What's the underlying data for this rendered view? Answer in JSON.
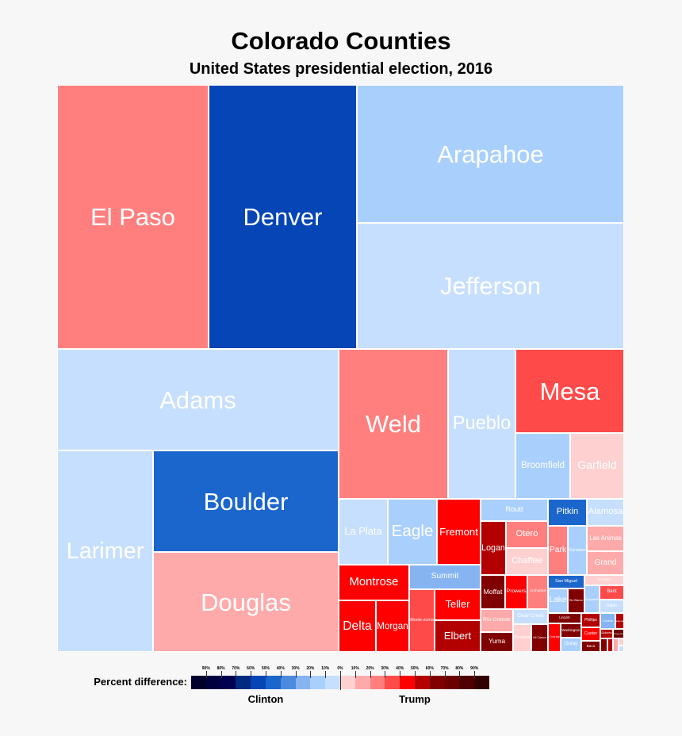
{
  "chart_data": {
    "type": "treemap",
    "title": "Colorado Counties",
    "subtitle": "United States presidential election, 2016",
    "legend": {
      "label": "Percent difference:",
      "clinton_label": "Clinton",
      "trump_label": "Trump",
      "tick_labels": [
        "90%",
        "80%",
        "70%",
        "60%",
        "50%",
        "40%",
        "30%",
        "20%",
        "10%",
        "0%",
        "10%",
        "20%",
        "30%",
        "40%",
        "50%",
        "60%",
        "70%",
        "80%",
        "90%"
      ],
      "clinton_colors": [
        "#00002c",
        "#000040",
        "#000050",
        "#002a7f",
        "#0645b5",
        "#1b66cc",
        "#4a8be0",
        "#85b4f1",
        "#a9d0fd",
        "#c7dffe"
      ],
      "trump_colors": [
        "#ffd0d0",
        "#ffaaaa",
        "#ff7f7f",
        "#ff4a4a",
        "#ff0000",
        "#b30000",
        "#800000",
        "#6b0000",
        "#500000",
        "#330000"
      ]
    },
    "items": [
      {
        "name": "El Paso",
        "winner": "Trump",
        "margin_bin": "20-30%"
      },
      {
        "name": "Denver",
        "winner": "Clinton",
        "margin_bin": "50-60%"
      },
      {
        "name": "Arapahoe",
        "winner": "Clinton",
        "margin_bin": "10-20%"
      },
      {
        "name": "Jefferson",
        "winner": "Clinton",
        "margin_bin": "0-10%"
      },
      {
        "name": "Adams",
        "winner": "Clinton",
        "margin_bin": "0-10%"
      },
      {
        "name": "Larimer",
        "winner": "Clinton",
        "margin_bin": "0-10%"
      },
      {
        "name": "Boulder",
        "winner": "Clinton",
        "margin_bin": "40-50%"
      },
      {
        "name": "Douglas",
        "winner": "Trump",
        "margin_bin": "10-20%"
      },
      {
        "name": "Weld",
        "winner": "Trump",
        "margin_bin": "20-30%"
      },
      {
        "name": "Pueblo",
        "winner": "Clinton",
        "margin_bin": "0-10%"
      },
      {
        "name": "Mesa",
        "winner": "Trump",
        "margin_bin": "30-40%"
      },
      {
        "name": "Broomfield",
        "winner": "Clinton",
        "margin_bin": "10-20%"
      },
      {
        "name": "Garfield",
        "winner": "Trump",
        "margin_bin": "0-10%"
      },
      {
        "name": "La Plata",
        "winner": "Clinton",
        "margin_bin": "0-10%"
      },
      {
        "name": "Eagle",
        "winner": "Clinton",
        "margin_bin": "10-20%"
      },
      {
        "name": "Fremont",
        "winner": "Trump",
        "margin_bin": "40-50%"
      },
      {
        "name": "Montrose",
        "winner": "Trump",
        "margin_bin": "40-50%"
      },
      {
        "name": "Delta",
        "winner": "Trump",
        "margin_bin": "40-50%"
      },
      {
        "name": "Morgan",
        "winner": "Trump",
        "margin_bin": "40-50%"
      },
      {
        "name": "Summit",
        "winner": "Clinton",
        "margin_bin": "20-30%"
      },
      {
        "name": "Monte-zuma",
        "winner": "Trump",
        "margin_bin": "30-40%"
      },
      {
        "name": "Teller",
        "winner": "Trump",
        "margin_bin": "40-50%"
      },
      {
        "name": "Elbert",
        "winner": "Trump",
        "margin_bin": "50-60%"
      },
      {
        "name": "Routt",
        "winner": "Clinton",
        "margin_bin": "10-20%"
      },
      {
        "name": "Pitkin",
        "winner": "Clinton",
        "margin_bin": "40-50%"
      },
      {
        "name": "Alamosa",
        "winner": "Clinton",
        "margin_bin": "0-10%"
      },
      {
        "name": "Logan",
        "winner": "Trump",
        "margin_bin": "50-60%"
      },
      {
        "name": "Otero",
        "winner": "Trump",
        "margin_bin": "20-30%"
      },
      {
        "name": "Chaffee",
        "winner": "Trump",
        "margin_bin": "0-10%"
      },
      {
        "name": "Park",
        "winner": "Trump",
        "margin_bin": "20-30%"
      },
      {
        "name": "Gunnison",
        "winner": "Clinton",
        "margin_bin": "10-20%"
      },
      {
        "name": "Las Animas",
        "winner": "Trump",
        "margin_bin": "10-20%"
      },
      {
        "name": "Grand",
        "winner": "Trump",
        "margin_bin": "10-20%"
      },
      {
        "name": "Moffat",
        "winner": "Trump",
        "margin_bin": "60-70%"
      },
      {
        "name": "Prowers",
        "winner": "Trump",
        "margin_bin": "40-50%"
      },
      {
        "name": "Archuleta",
        "winner": "Trump",
        "margin_bin": "20-30%"
      },
      {
        "name": "San Miguel",
        "winner": "Clinton",
        "margin_bin": "40-50%"
      },
      {
        "name": "Huerfano",
        "winner": "Trump",
        "margin_bin": "0-10%"
      },
      {
        "name": "Lake",
        "winner": "Clinton",
        "margin_bin": "10-20%"
      },
      {
        "name": "Rio Blanco",
        "winner": "Trump",
        "margin_bin": "60-70%"
      },
      {
        "name": "Saguache",
        "winner": "Clinton",
        "margin_bin": "10-20%"
      },
      {
        "name": "Bent",
        "winner": "Trump",
        "margin_bin": "30-40%"
      },
      {
        "name": "Gilpin",
        "winner": "Clinton",
        "margin_bin": "0-10%"
      },
      {
        "name": "Rio Grande",
        "winner": "Trump",
        "margin_bin": "10-20%"
      },
      {
        "name": "Yuma",
        "winner": "Trump",
        "margin_bin": "60-70%"
      },
      {
        "name": "Clear Creek",
        "winner": "Clinton",
        "margin_bin": "0-10%"
      },
      {
        "name": "Conejos",
        "winner": "Trump",
        "margin_bin": "0-10%"
      },
      {
        "name": "Kit Carson",
        "winner": "Trump",
        "margin_bin": "60-70%"
      },
      {
        "name": "Lincoln",
        "winner": "Trump",
        "margin_bin": "60-70%"
      },
      {
        "name": "Crow-ley",
        "winner": "Trump",
        "margin_bin": "40-50%"
      },
      {
        "name": "Washington",
        "winner": "Trump",
        "margin_bin": "60-70%"
      },
      {
        "name": "Ouray",
        "winner": "Clinton",
        "margin_bin": "10-20%"
      },
      {
        "name": "Phillips",
        "winner": "Trump",
        "margin_bin": "50-60%"
      },
      {
        "name": "Custer",
        "winner": "Trump",
        "margin_bin": "40-50%"
      },
      {
        "name": "Baca",
        "winner": "Trump",
        "margin_bin": "60-70%"
      },
      {
        "name": "Costilla",
        "winner": "Clinton",
        "margin_bin": "20-30%"
      },
      {
        "name": "Sedg-wick",
        "winner": "Trump",
        "margin_bin": "50-60%"
      },
      {
        "name": "Dolores",
        "winner": "Trump",
        "margin_bin": "50-60%"
      },
      {
        "name": "Cheyenne",
        "winner": "Trump",
        "margin_bin": "70-80%"
      },
      {
        "name": "",
        "winner": "Trump",
        "margin_bin": "60-70%"
      },
      {
        "name": "",
        "winner": "Trump",
        "margin_bin": "50-60%"
      },
      {
        "name": "",
        "winner": "Trump",
        "margin_bin": "10-20%"
      },
      {
        "name": "",
        "winner": "Trump",
        "margin_bin": "0-10%"
      },
      {
        "name": "",
        "winner": "Clinton",
        "margin_bin": "0-10%"
      }
    ]
  }
}
